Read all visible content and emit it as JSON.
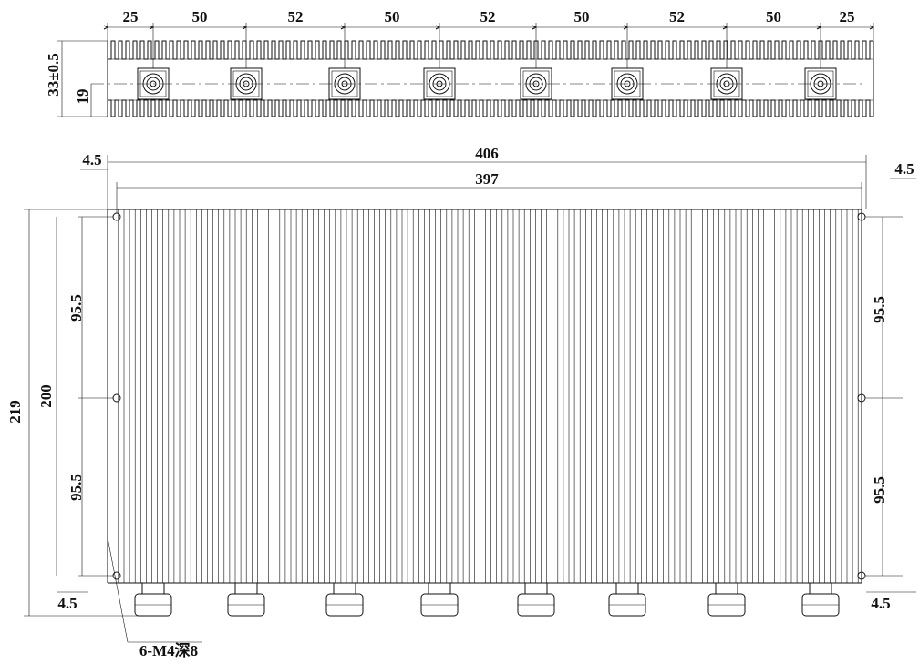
{
  "top_view": {
    "spacing_dimensions": [
      "25",
      "50",
      "52",
      "50",
      "52",
      "50",
      "52",
      "50",
      "25"
    ],
    "height_dimension": "33±0.5",
    "center_dimension": "19"
  },
  "front_view": {
    "overall_length": "406",
    "hole_spacing": "397",
    "edge_offset_top_left": "4.5",
    "edge_offset_top_right": "4.5",
    "left_hole_spacings": [
      "95.5",
      "95.5"
    ],
    "right_hole_spacings": [
      "95.5",
      "95.5"
    ],
    "hole_height": "200",
    "overall_height": "219",
    "edge_offset_bottom_left": "4.5",
    "edge_offset_bottom_right": "4.5",
    "hole_callout": "6-M4深8"
  }
}
